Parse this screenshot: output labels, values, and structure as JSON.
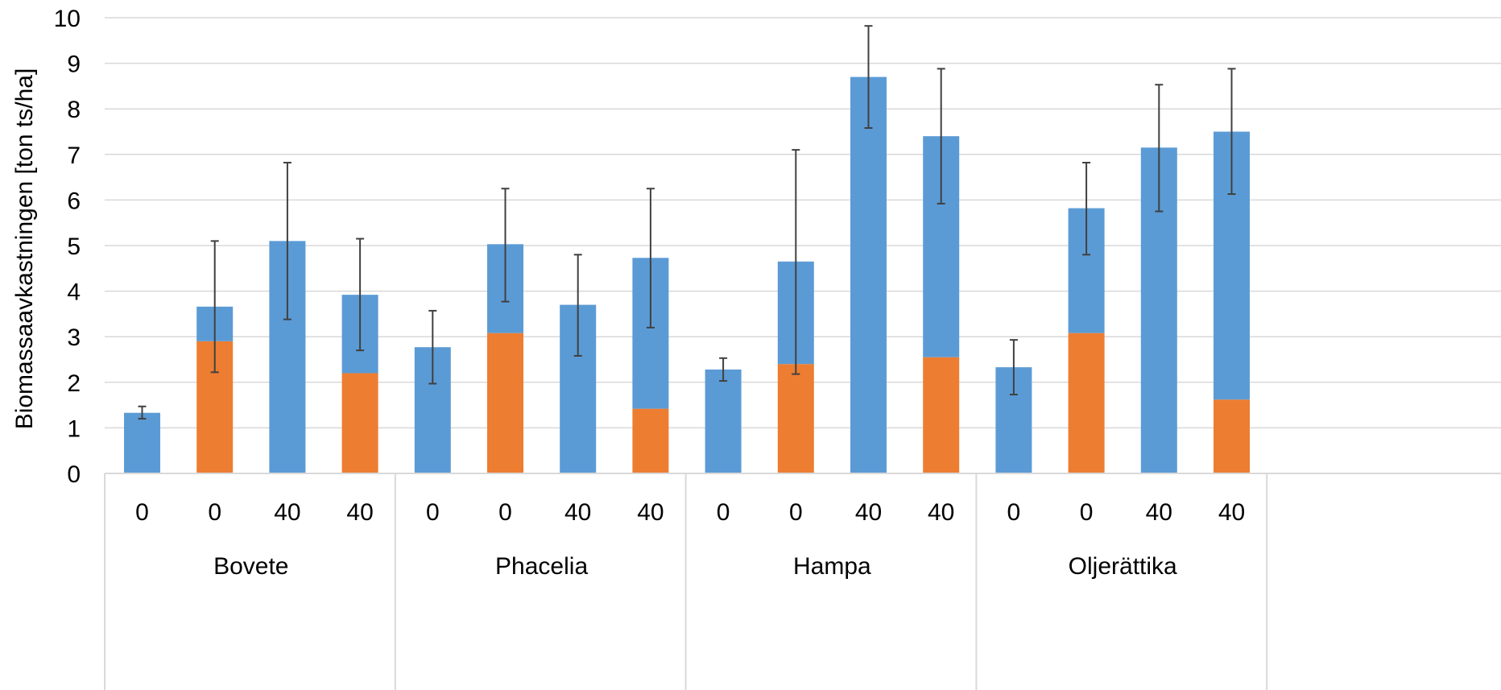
{
  "chart_data": {
    "type": "bar",
    "stacked": true,
    "title": "",
    "xlabel": "",
    "ylabel": "Biomassaavkastningen [ton ts/ha]",
    "ylim": [
      0,
      10
    ],
    "yticks": [
      "0",
      "1",
      "2",
      "3",
      "4",
      "5",
      "6",
      "7",
      "8",
      "9",
      "10"
    ],
    "grid": true,
    "groups": [
      "Bovete",
      "Phacelia",
      "Hampa",
      "Oljerättika"
    ],
    "categories": [
      "0",
      "0",
      "40",
      "40",
      "0",
      "0",
      "40",
      "40",
      "0",
      "0",
      "40",
      "40",
      "0",
      "0",
      "40",
      "40"
    ],
    "series": [
      {
        "color": "#ed7d31",
        "values": [
          0,
          2.9,
          0,
          2.2,
          0,
          3.08,
          0,
          1.42,
          0,
          2.4,
          0,
          2.55,
          0,
          3.08,
          0,
          1.62
        ]
      },
      {
        "color": "#5b9bd5",
        "values": [
          1.33,
          0.76,
          5.1,
          1.72,
          2.77,
          1.95,
          3.7,
          3.31,
          2.28,
          2.25,
          8.7,
          4.85,
          2.33,
          2.74,
          7.15,
          5.88
        ]
      }
    ],
    "totals": [
      1.33,
      3.66,
      5.1,
      3.92,
      2.77,
      5.03,
      3.7,
      4.73,
      2.28,
      4.65,
      8.7,
      7.4,
      2.33,
      5.82,
      7.15,
      7.5
    ],
    "error_bars": [
      [
        1.2,
        1.47
      ],
      [
        2.22,
        5.1
      ],
      [
        3.38,
        6.82
      ],
      [
        2.7,
        5.15
      ],
      [
        1.97,
        3.57
      ],
      [
        3.77,
        6.25
      ],
      [
        2.58,
        4.8
      ],
      [
        3.2,
        6.25
      ],
      [
        2.03,
        2.53
      ],
      [
        2.18,
        7.1
      ],
      [
        7.58,
        9.82
      ],
      [
        5.92,
        8.88
      ],
      [
        1.73,
        2.93
      ],
      [
        4.8,
        6.82
      ],
      [
        5.75,
        8.53
      ],
      [
        6.13,
        8.88
      ]
    ]
  }
}
